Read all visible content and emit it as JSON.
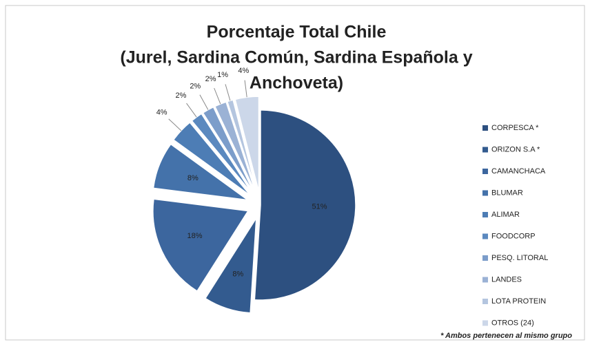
{
  "chart_data": {
    "type": "pie",
    "title": [
      "Porcentaje Total Chile",
      "(Jurel, Sardina Común, Sardina Española y",
      "Anchoveta)"
    ],
    "categories": [
      "CORPESCA *",
      "ORIZON S.A *",
      "CAMANCHACA",
      "BLUMAR",
      "ALIMAR",
      "FOODCORP",
      "PESQ. LITORAL",
      "LANDES",
      "LOTA PROTEIN",
      "OTROS (24)"
    ],
    "values": [
      51,
      8,
      18,
      8,
      4,
      2,
      2,
      2,
      1,
      4
    ],
    "value_labels": [
      "51%",
      "8%",
      "18%",
      "8%",
      "4%",
      "2%",
      "2%",
      "2%",
      "1%",
      "4%"
    ],
    "colors": [
      "#2d5080",
      "#335b8f",
      "#3c669e",
      "#4472aa",
      "#4d7db5",
      "#5b89bf",
      "#7c9dca",
      "#9bb2d5",
      "#b4c5df",
      "#ccd7e9"
    ],
    "legend": "right",
    "annotation": "* Ambos pertenecen al mismo grupo"
  }
}
